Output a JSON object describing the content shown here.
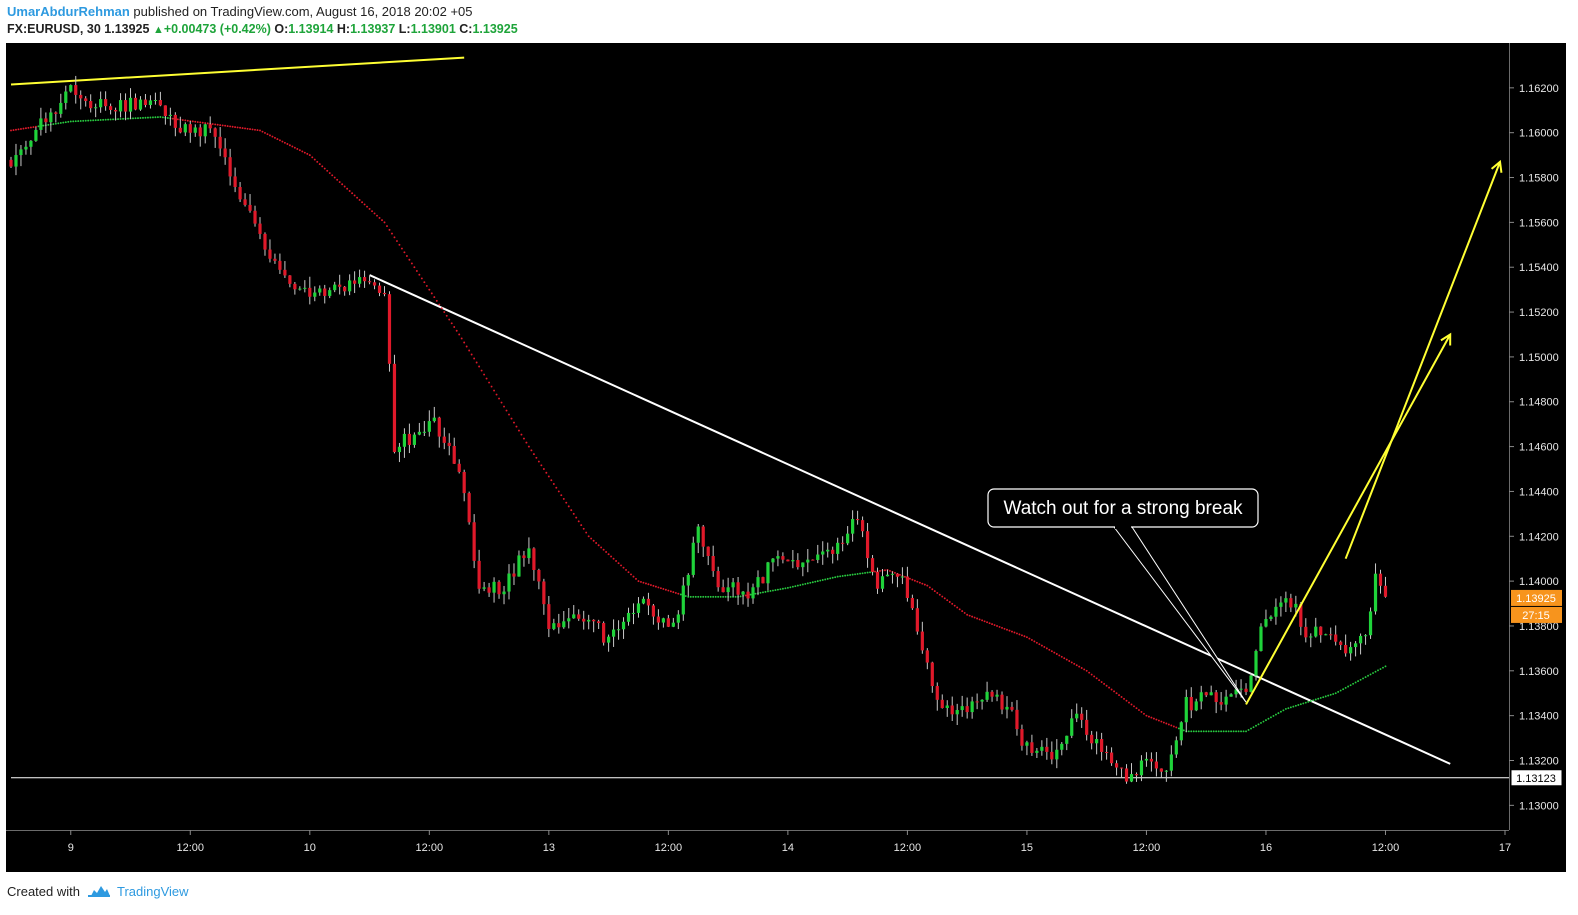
{
  "header": {
    "author": "UmarAbdurRehman",
    "published_text": "published on TradingView.com, August 16, 2018 20:02 +05",
    "symbol": "FX:EURUSD, 30",
    "last": "1.13925",
    "change": "+0.00473 (+0.42%)",
    "o_label": "O:",
    "o_value": "1.13914",
    "h_label": "H:",
    "h_value": "1.13937",
    "l_label": "L:",
    "l_value": "1.13901",
    "c_label": "C:",
    "c_value": "1.13925"
  },
  "footer": {
    "created_with": "Created with",
    "brand": "TradingView",
    "logo_icon": "tradingview-cloud-icon"
  },
  "colors": {
    "background": "#000000",
    "up_candle": "#1fd33a",
    "down_candle": "#e0192a",
    "wick": "#c8c8c8",
    "ma_below": "#27c93f",
    "ma_above": "#e0192a",
    "trendline": "#ffffff",
    "arrows": "#ffff33",
    "price_tag": "#f7941d"
  },
  "chart_data": {
    "type": "candlestick",
    "symbol": "FX:EURUSD",
    "interval": "30",
    "ylim": [
      1.1289,
      1.164
    ],
    "y_ticks": [
      "1.16200",
      "1.16000",
      "1.15800",
      "1.15600",
      "1.15400",
      "1.15200",
      "1.15000",
      "1.14800",
      "1.14600",
      "1.14400",
      "1.14200",
      "1.14000",
      "1.13800",
      "1.13600",
      "1.13400",
      "1.13200",
      "1.13000"
    ],
    "x_axis": {
      "range": [
        0,
        301
      ],
      "ticks": [
        {
          "label": "9",
          "bar": 12
        },
        {
          "label": "12:00",
          "bar": 36
        },
        {
          "label": "10",
          "bar": 60
        },
        {
          "label": "12:00",
          "bar": 84
        },
        {
          "label": "13",
          "bar": 108
        },
        {
          "label": "12:00",
          "bar": 132
        },
        {
          "label": "14",
          "bar": 156
        },
        {
          "label": "12:00",
          "bar": 180
        },
        {
          "label": "15",
          "bar": 204
        },
        {
          "label": "12:00",
          "bar": 228
        },
        {
          "label": "16",
          "bar": 252
        },
        {
          "label": "12:00",
          "bar": 276
        },
        {
          "label": "17",
          "bar": 300
        }
      ]
    },
    "waypoints": [
      [
        0,
        1.1585
      ],
      [
        6,
        1.1605
      ],
      [
        12,
        1.1618
      ],
      [
        20,
        1.161
      ],
      [
        28,
        1.1616
      ],
      [
        34,
        1.16
      ],
      [
        40,
        1.1602
      ],
      [
        48,
        1.1562
      ],
      [
        56,
        1.153
      ],
      [
        64,
        1.153
      ],
      [
        72,
        1.1535
      ],
      [
        75,
        1.153
      ],
      [
        77,
        1.146
      ],
      [
        85,
        1.147
      ],
      [
        90,
        1.145
      ],
      [
        94,
        1.14
      ],
      [
        98,
        1.1395
      ],
      [
        104,
        1.1415
      ],
      [
        108,
        1.138
      ],
      [
        116,
        1.1385
      ],
      [
        120,
        1.1372
      ],
      [
        126,
        1.1392
      ],
      [
        132,
        1.138
      ],
      [
        134,
        1.1385
      ],
      [
        138,
        1.1425
      ],
      [
        142,
        1.1398
      ],
      [
        148,
        1.1395
      ],
      [
        154,
        1.141
      ],
      [
        160,
        1.1408
      ],
      [
        166,
        1.1415
      ],
      [
        170,
        1.1428
      ],
      [
        174,
        1.1398
      ],
      [
        178,
        1.1405
      ],
      [
        182,
        1.138
      ],
      [
        186,
        1.1348
      ],
      [
        190,
        1.1342
      ],
      [
        196,
        1.1348
      ],
      [
        200,
        1.1345
      ],
      [
        204,
        1.1325
      ],
      [
        210,
        1.1322
      ],
      [
        214,
        1.134
      ],
      [
        220,
        1.1322
      ],
      [
        224,
        1.131
      ],
      [
        228,
        1.132
      ],
      [
        232,
        1.1318
      ],
      [
        236,
        1.1345
      ],
      [
        240,
        1.1348
      ],
      [
        244,
        1.1345
      ],
      [
        248,
        1.1352
      ],
      [
        252,
        1.1385
      ],
      [
        256,
        1.1395
      ],
      [
        260,
        1.1378
      ],
      [
        264,
        1.1375
      ],
      [
        268,
        1.1368
      ],
      [
        272,
        1.1375
      ],
      [
        274,
        1.1402
      ],
      [
        276,
        1.1393
      ]
    ],
    "moving_average": {
      "points": [
        [
          0,
          1.1601
        ],
        [
          12,
          1.1605
        ],
        [
          30,
          1.1607
        ],
        [
          50,
          1.1601
        ],
        [
          60,
          1.159
        ],
        [
          75,
          1.156
        ],
        [
          90,
          1.151
        ],
        [
          104,
          1.146
        ],
        [
          116,
          1.142
        ],
        [
          126,
          1.14
        ],
        [
          136,
          1.1393
        ],
        [
          146,
          1.1393
        ],
        [
          156,
          1.1397
        ],
        [
          166,
          1.1402
        ],
        [
          176,
          1.1405
        ],
        [
          184,
          1.1398
        ],
        [
          192,
          1.1385
        ],
        [
          204,
          1.1375
        ],
        [
          216,
          1.136
        ],
        [
          228,
          1.134
        ],
        [
          236,
          1.1333
        ],
        [
          248,
          1.1333
        ],
        [
          256,
          1.1343
        ],
        [
          266,
          1.135
        ],
        [
          276,
          1.1362
        ]
      ]
    },
    "trendlines": [
      {
        "name": "descending-trendline",
        "from": [
          72,
          1.15365
        ],
        "to": [
          289,
          1.13185
        ]
      },
      {
        "name": "support-line",
        "from": [
          0,
          1.13123
        ],
        "to": [
          301,
          1.13123
        ]
      },
      {
        "name": "top-yellow-line",
        "from": [
          0,
          1.16215
        ],
        "to": [
          91,
          1.16335
        ]
      }
    ],
    "arrows": [
      {
        "from": [
          248,
          1.1345
        ],
        "to": [
          289,
          1.151
        ]
      },
      {
        "from": [
          268,
          1.141
        ],
        "to": [
          299,
          1.1587
        ]
      }
    ],
    "annotation": {
      "text": "Watch out for a strong break",
      "points_to": [
        248,
        1.1346
      ]
    },
    "last_price": "1.13925",
    "countdown": "27:15",
    "support_level": "1.13123"
  }
}
